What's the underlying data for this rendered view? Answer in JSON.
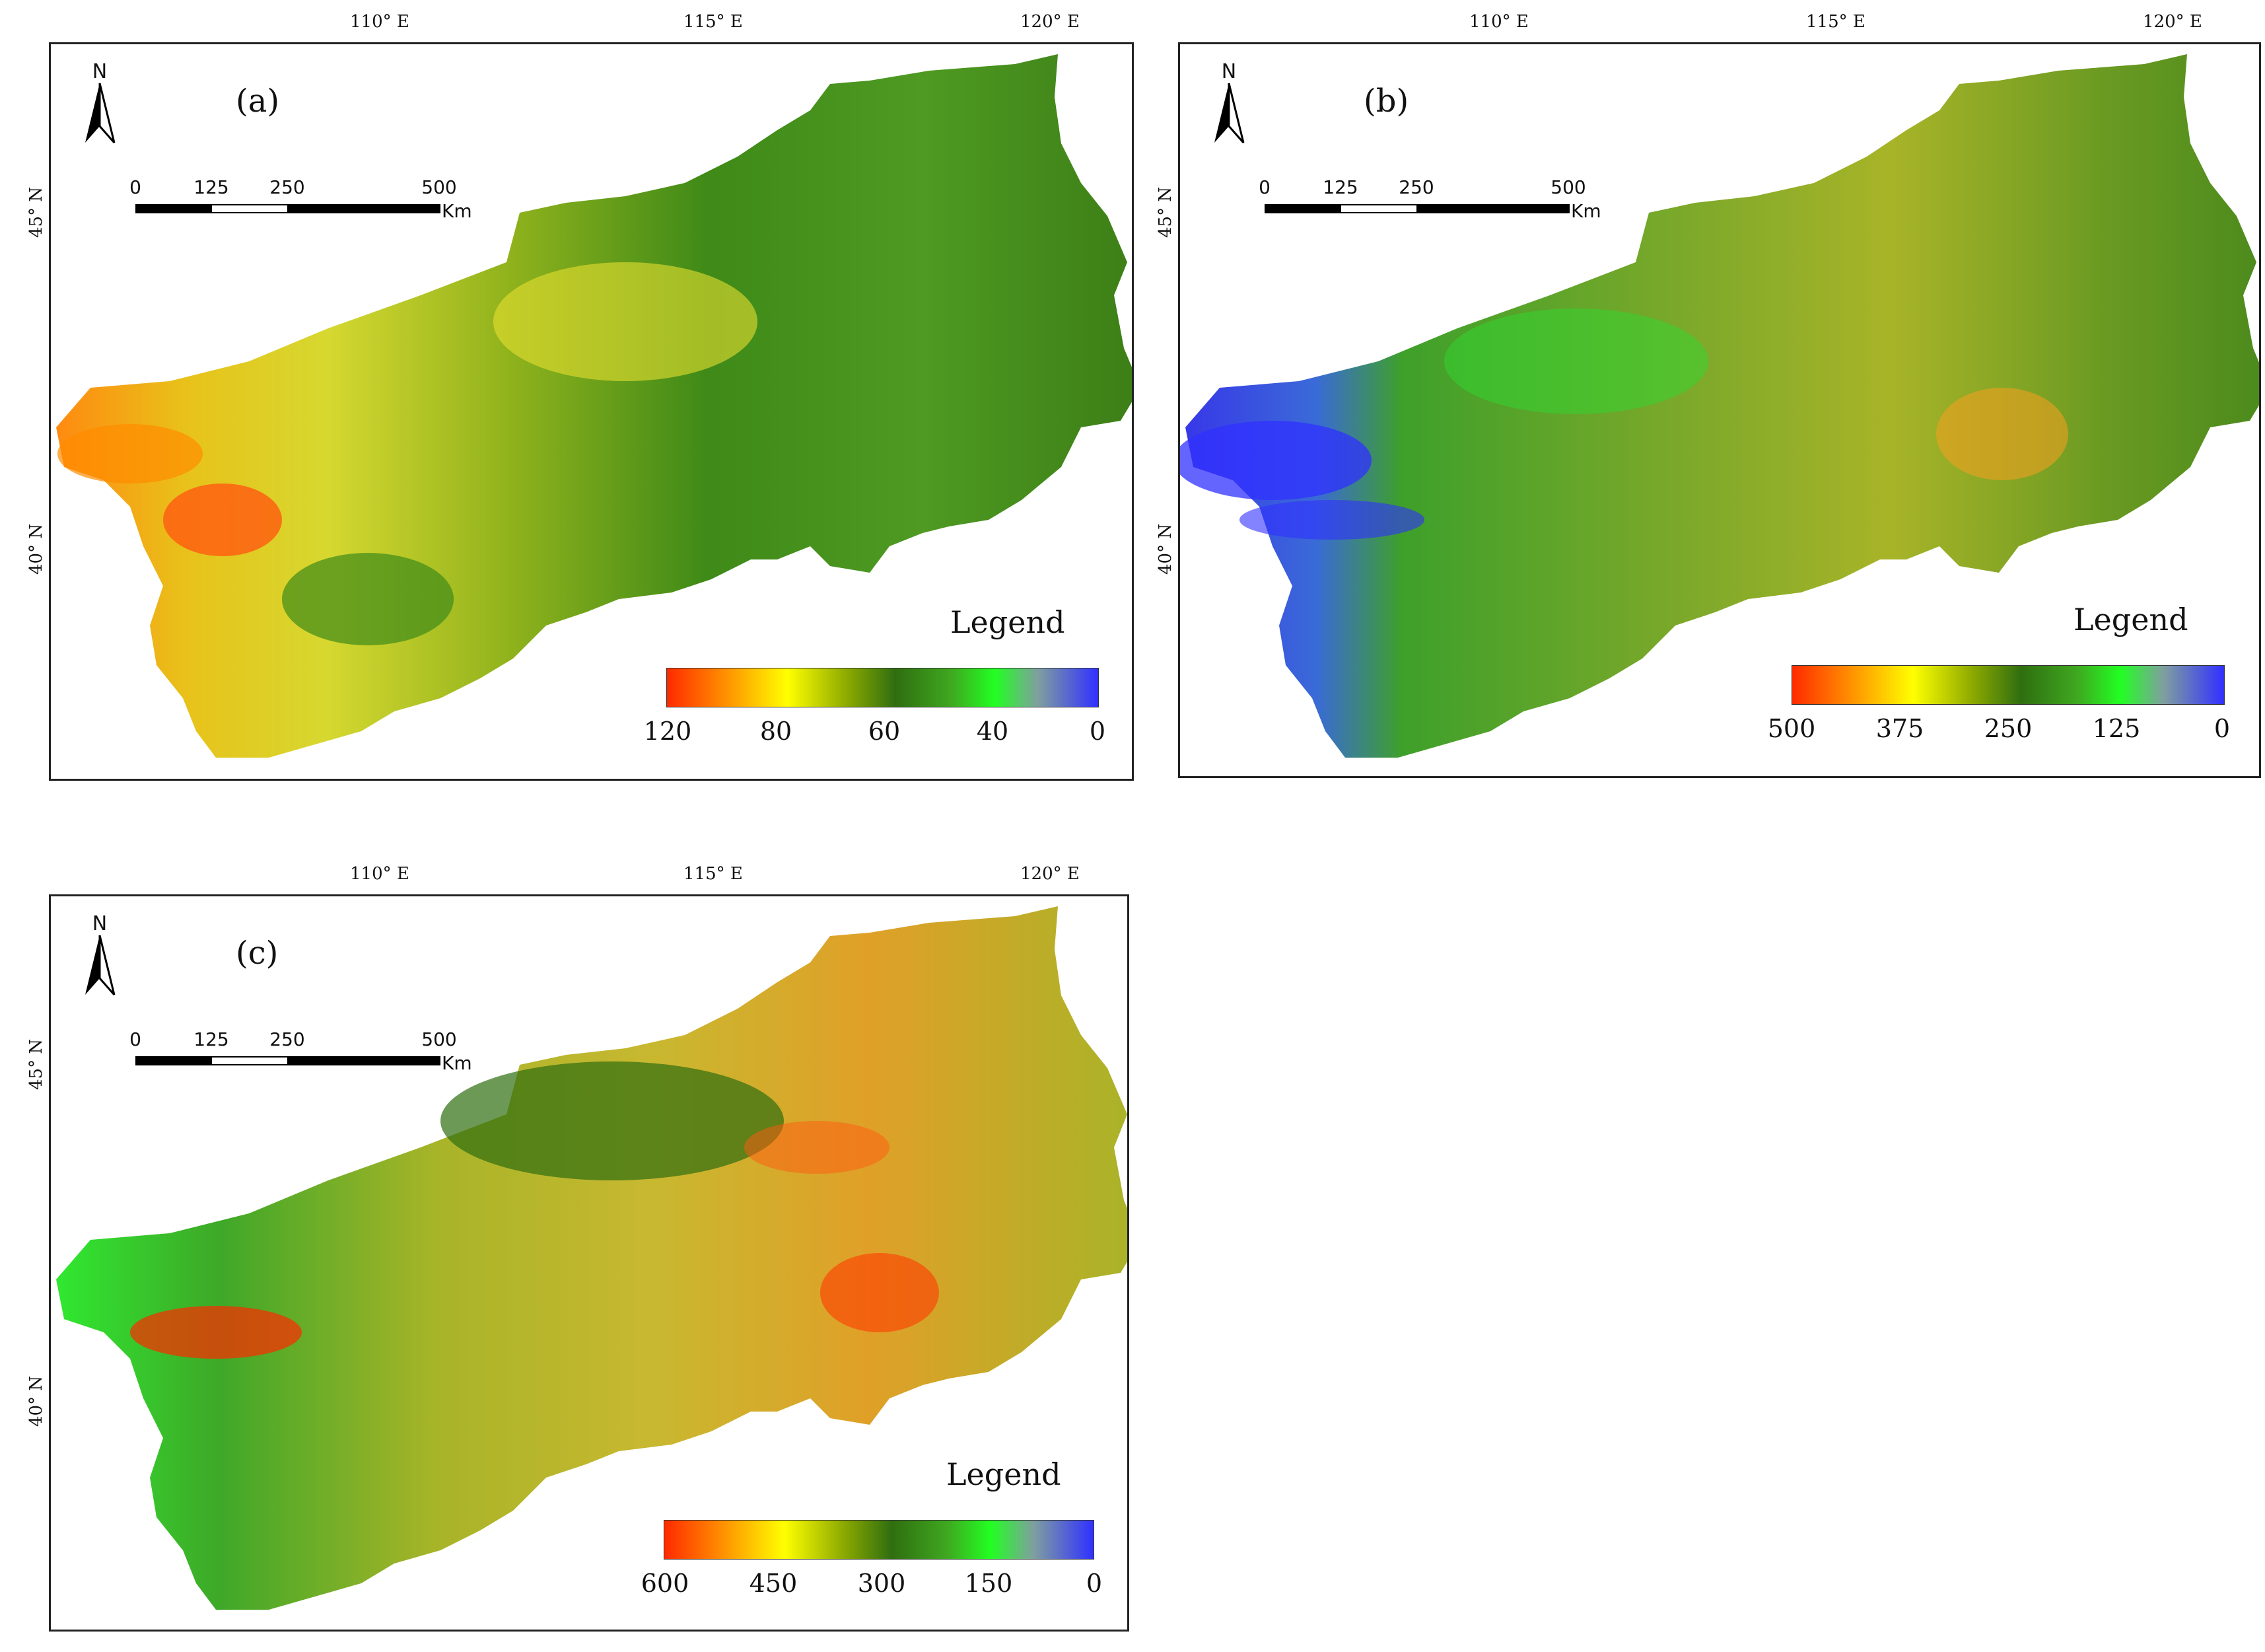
{
  "figure": {
    "panels": [
      {
        "label": "(a)",
        "north": "N",
        "lon_ticks": [
          "110°  E",
          "115°  E",
          "120°  E"
        ],
        "lat_ticks": [
          "45°  N",
          "40°  N"
        ],
        "scale": {
          "ticks": [
            "0",
            "125",
            "250",
            "500"
          ],
          "unit": "Km"
        },
        "legend": {
          "title": "Legend",
          "ticks": [
            "120",
            "80",
            "60",
            "40",
            "0"
          ]
        }
      },
      {
        "label": "(b)",
        "north": "N",
        "lon_ticks": [
          "110°  E",
          "115°  E",
          "120°  E"
        ],
        "lat_ticks": [
          "45°  N",
          "40°  N"
        ],
        "scale": {
          "ticks": [
            "0",
            "125",
            "250",
            "500"
          ],
          "unit": "Km"
        },
        "legend": {
          "title": "Legend",
          "ticks": [
            "500",
            "375",
            "250",
            "125",
            "0"
          ]
        }
      },
      {
        "label": "(c)",
        "north": "N",
        "lon_ticks": [
          "110°  E",
          "115°  E",
          "120°  E"
        ],
        "lat_ticks": [
          "45°  N",
          "40°  N"
        ],
        "scale": {
          "ticks": [
            "0",
            "125",
            "250",
            "500"
          ],
          "unit": "Km"
        },
        "legend": {
          "title": "Legend",
          "ticks": [
            "600",
            "450",
            "300",
            "150",
            "0"
          ]
        }
      }
    ],
    "colors": {
      "ramp": [
        "#ff2a00",
        "#ff8c00",
        "#ffff00",
        "#8aa800",
        "#2f6e10",
        "#3fa820",
        "#22ff22",
        "#7f9f9f",
        "#3030ff"
      ]
    }
  }
}
